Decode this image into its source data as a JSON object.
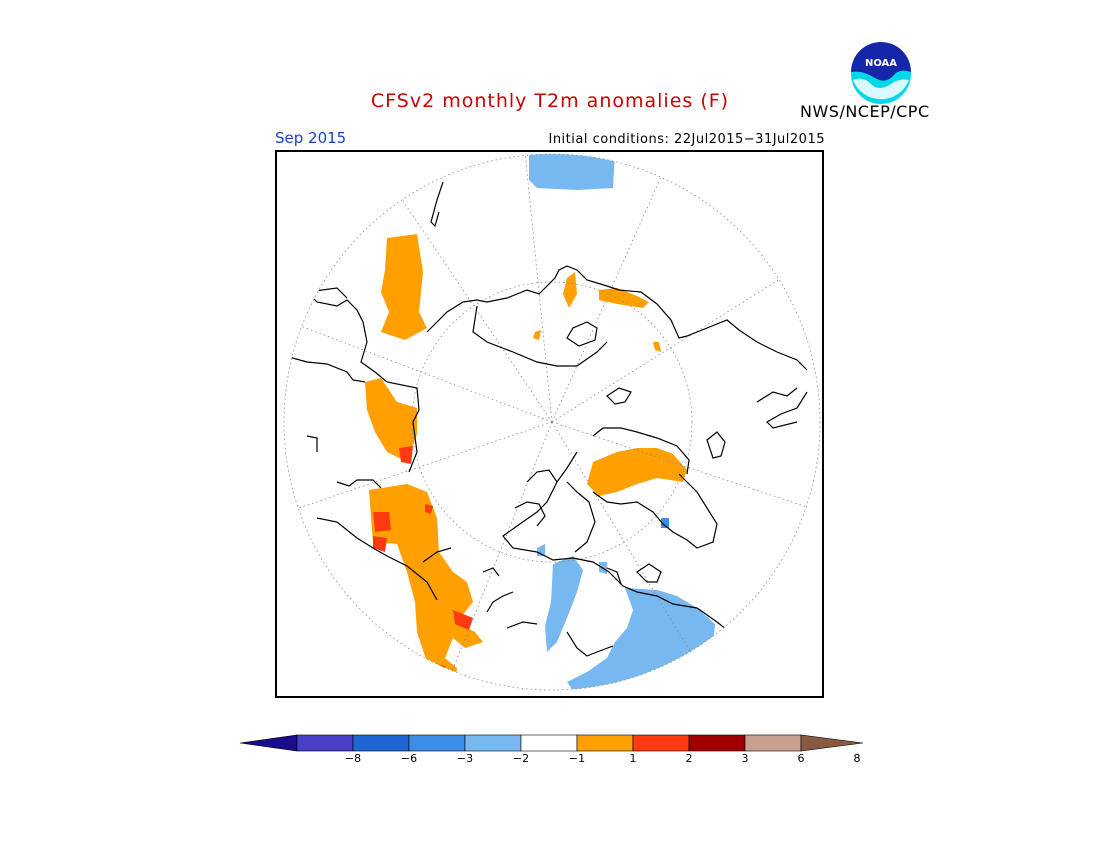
{
  "title": "CFSv2 monthly T2m anomalies (F)",
  "period": "Sep 2015",
  "initial_conditions": "Initial conditions: 22Jul2015−31Jul2015",
  "agency": "NWS/NCEP/CPC",
  "logo": {
    "icon": "noaa-logo-icon",
    "text": "NOAA"
  },
  "colors": {
    "title": "#cc0000",
    "period": "#1a3fcc",
    "legend": [
      "#1a0c8f",
      "#4a40c8",
      "#1f66d4",
      "#3c8fe6",
      "#78b8f0",
      "#ffffff",
      "#ffa000",
      "#ff3a10",
      "#a00000",
      "#c8a090",
      "#8a5a40"
    ]
  },
  "colorbar": {
    "tick_labels": [
      "−8",
      "−6",
      "−3",
      "−2",
      "−1",
      "1",
      "2",
      "3",
      "6",
      "8"
    ]
  }
}
